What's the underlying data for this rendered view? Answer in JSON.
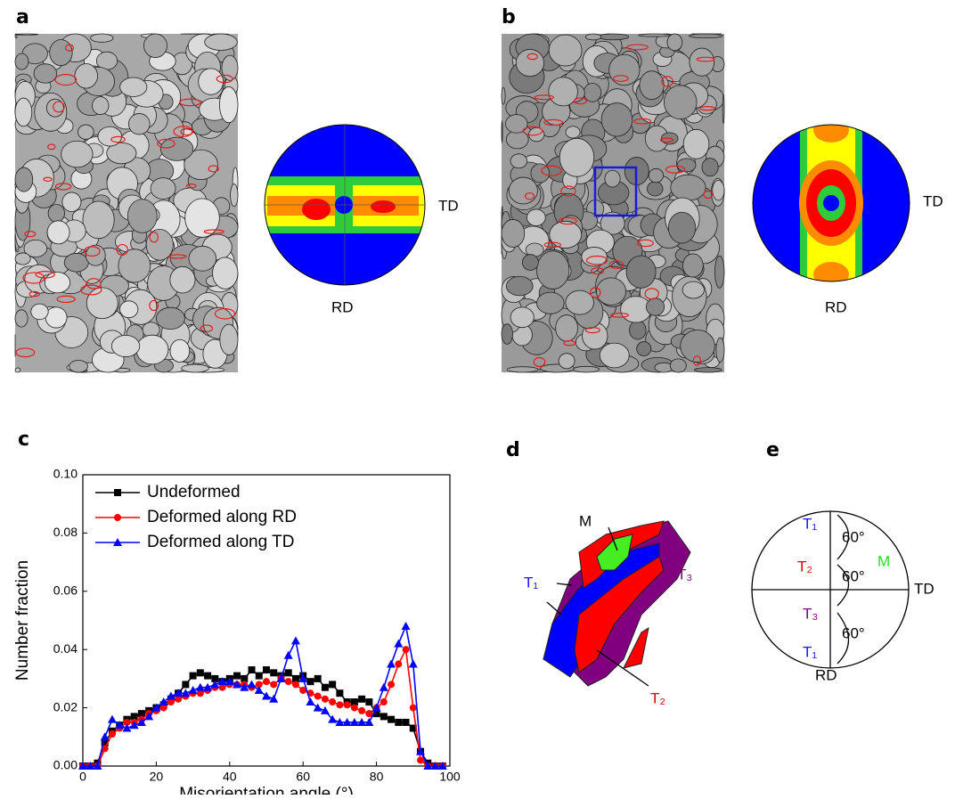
{
  "panels": [
    "a",
    "b",
    "c",
    "d",
    "e"
  ],
  "pole_figure_a": {
    "td": "TD",
    "rd": "RD"
  },
  "pole_figure_b": {
    "td": "TD",
    "rd": "RD"
  },
  "panel_d": {
    "m": "M",
    "t1": "T₁",
    "t2": "T₂",
    "t3": "T₃"
  },
  "panel_e": {
    "t1_top": "T₁",
    "t2": "T₂",
    "m": "M",
    "td": "TD",
    "t3": "T₃",
    "t1_bottom": "T₁",
    "rd": "RD",
    "angles": [
      "60°",
      "60°",
      "60°"
    ]
  },
  "chart_data": {
    "type": "line",
    "x_label": "Misorientation angle (°)",
    "y_label": "Number fraction",
    "x": [
      0,
      2,
      4,
      6,
      8,
      10,
      12,
      14,
      16,
      18,
      20,
      22,
      24,
      26,
      28,
      30,
      32,
      34,
      36,
      38,
      40,
      42,
      44,
      46,
      48,
      50,
      52,
      54,
      56,
      58,
      60,
      62,
      64,
      66,
      68,
      70,
      72,
      74,
      76,
      78,
      80,
      82,
      84,
      86,
      88,
      90,
      92,
      94,
      96,
      98
    ],
    "series": [
      {
        "name": "Undeformed",
        "color": "#000000",
        "marker": "square",
        "values": [
          0,
          0,
          0.001,
          0.008,
          0.012,
          0.014,
          0.016,
          0.017,
          0.018,
          0.019,
          0.02,
          0.021,
          0.023,
          0.025,
          0.028,
          0.031,
          0.032,
          0.031,
          0.03,
          0.029,
          0.03,
          0.031,
          0.03,
          0.033,
          0.031,
          0.033,
          0.032,
          0.031,
          0.032,
          0.03,
          0.031,
          0.029,
          0.03,
          0.027,
          0.028,
          0.025,
          0.022,
          0.022,
          0.023,
          0.022,
          0.018,
          0.017,
          0.016,
          0.015,
          0.015,
          0.013,
          0.005,
          0.001,
          0,
          0
        ]
      },
      {
        "name": "Deformed along RD",
        "color": "#ff0000",
        "marker": "circle",
        "values": [
          0,
          0,
          0,
          0.006,
          0.011,
          0.013,
          0.015,
          0.015,
          0.016,
          0.018,
          0.019,
          0.02,
          0.022,
          0.023,
          0.024,
          0.025,
          0.025,
          0.026,
          0.027,
          0.027,
          0.028,
          0.028,
          0.028,
          0.027,
          0.028,
          0.029,
          0.028,
          0.03,
          0.029,
          0.028,
          0.026,
          0.025,
          0.024,
          0.023,
          0.022,
          0.021,
          0.021,
          0.02,
          0.019,
          0.018,
          0.02,
          0.022,
          0.028,
          0.035,
          0.04,
          0.02,
          0.002,
          0,
          0,
          0
        ]
      },
      {
        "name": "Deformed along TD",
        "color": "#0000ff",
        "marker": "triangle",
        "values": [
          0,
          0,
          0,
          0.01,
          0.016,
          0.014,
          0.013,
          0.014,
          0.015,
          0.017,
          0.02,
          0.022,
          0.024,
          0.025,
          0.025,
          0.026,
          0.027,
          0.027,
          0.028,
          0.029,
          0.029,
          0.028,
          0.027,
          0.028,
          0.026,
          0.024,
          0.023,
          0.03,
          0.038,
          0.043,
          0.03,
          0.022,
          0.02,
          0.019,
          0.016,
          0.015,
          0.015,
          0.015,
          0.015,
          0.015,
          0.02,
          0.027,
          0.035,
          0.042,
          0.048,
          0.035,
          0.005,
          0,
          0,
          0
        ]
      }
    ],
    "xlim": [
      0,
      100
    ],
    "xticks": [
      0,
      20,
      40,
      60,
      80,
      100
    ],
    "ylim": [
      0,
      0.1
    ],
    "yticks": [
      {
        "value": 0,
        "label": "0.00"
      },
      {
        "value": 0.02,
        "label": "0.02"
      },
      {
        "value": 0.04,
        "label": "0.04"
      },
      {
        "value": 0.06,
        "label": "0.06"
      },
      {
        "value": 0.08,
        "label": "0.08"
      },
      {
        "value": 0.1,
        "label": "0.10"
      }
    ],
    "legend": "upper left",
    "grid": false
  }
}
